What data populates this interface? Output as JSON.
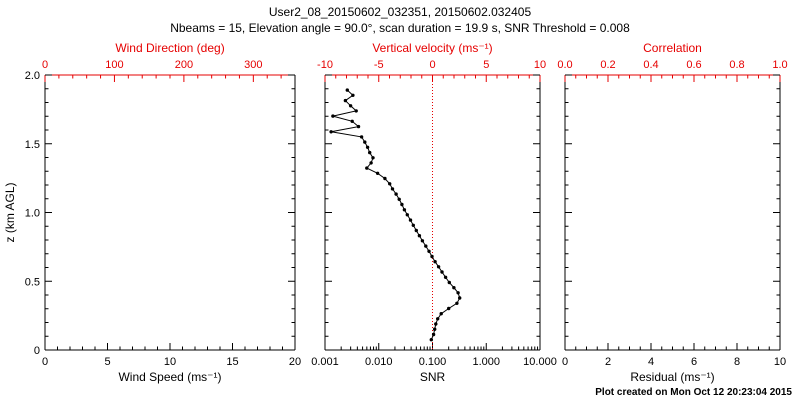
{
  "header": {
    "title": "User2_08_20150602_032351, 20150602.032405",
    "subtitle": "Nbeams = 15, Elevation angle = 90.0°, scan duration = 19.9 s, SNR Threshold = 0.008"
  },
  "footer": {
    "created": "Plot created on Mon Oct 12 20:23:04 2015"
  },
  "colors": {
    "background": "#ffffff",
    "axis": "#000000",
    "secondary_axis": "#e60000",
    "series": "#000000",
    "zero_line": "#e60000"
  },
  "chart_data": [
    {
      "type": "line",
      "panel": "wind-speed",
      "xlabel": "Wind Speed (ms⁻¹)",
      "x2label": "Wind Direction (deg)",
      "ylabel": "z (km AGL)",
      "xlim": [
        0,
        20
      ],
      "x2lim": [
        0,
        360
      ],
      "ylim": [
        0,
        2
      ],
      "xticks": [
        0,
        5,
        10,
        15,
        20
      ],
      "xtick_labels": [
        "0",
        "5",
        "10",
        "15",
        "20"
      ],
      "xminor_step": 1,
      "x2ticks": [
        0,
        100,
        200,
        300
      ],
      "x2tick_labels": [
        "0",
        "100",
        "200",
        "300"
      ],
      "x2minor_step": 20,
      "yticks": [
        0,
        0.5,
        1,
        1.5,
        2
      ],
      "ytick_labels": [
        "0",
        "0.5",
        "1.0",
        "1.5",
        "2.0"
      ],
      "yminor_step": 0.1,
      "show_ytick_labels": true,
      "grid": false,
      "series": []
    },
    {
      "type": "line",
      "panel": "snr",
      "xlabel": "SNR",
      "x2label": "Vertical velocity (ms⁻¹)",
      "xscale": "log",
      "xlim": [
        0.001,
        10
      ],
      "x2lim": [
        -10,
        10
      ],
      "ylim": [
        0,
        2
      ],
      "xticks": [
        0.001,
        0.01,
        0.1,
        1,
        10
      ],
      "xtick_labels": [
        "0.001",
        "0.010",
        "0.100",
        "1.000",
        "10.000"
      ],
      "x2ticks": [
        -10,
        -5,
        0,
        5,
        10
      ],
      "x2tick_labels": [
        "-10",
        "-5",
        "0",
        "5",
        "10"
      ],
      "x2minor_step": 1,
      "yticks": [
        0,
        0.5,
        1,
        1.5,
        2
      ],
      "ytick_labels": [
        "0",
        "0.5",
        "1.0",
        "1.5",
        "2.0"
      ],
      "yminor_step": 0.1,
      "show_ytick_labels": false,
      "zero_line_x2": 0,
      "grid": false,
      "series": [
        {
          "name": "SNR profile",
          "marker": "filled-circle",
          "z_values": [
            0.075,
            0.113,
            0.151,
            0.189,
            0.227,
            0.264,
            0.302,
            0.34,
            0.378,
            0.416,
            0.453,
            0.491,
            0.529,
            0.567,
            0.605,
            0.642,
            0.68,
            0.718,
            0.756,
            0.794,
            0.831,
            0.869,
            0.907,
            0.945,
            0.983,
            1.02,
            1.058,
            1.096,
            1.134,
            1.172,
            1.209,
            1.247,
            1.285,
            1.323,
            1.361,
            1.398,
            1.436,
            1.474,
            1.512,
            1.55,
            1.587,
            1.625,
            1.663,
            1.701,
            1.739,
            1.776,
            1.814,
            1.852,
            1.89
          ],
          "x_values": [
            0.095,
            0.105,
            0.11,
            0.115,
            0.125,
            0.145,
            0.2,
            0.285,
            0.32,
            0.3,
            0.25,
            0.205,
            0.175,
            0.15,
            0.13,
            0.112,
            0.098,
            0.086,
            0.075,
            0.065,
            0.057,
            0.05,
            0.044,
            0.039,
            0.034,
            0.03,
            0.027,
            0.024,
            0.021,
            0.018,
            0.016,
            0.013,
            0.0095,
            0.006,
            0.0072,
            0.0078,
            0.0068,
            0.0062,
            0.0055,
            0.0048,
            0.0013,
            0.0042,
            0.0032,
            0.0014,
            0.0038,
            0.003,
            0.0024,
            0.0033,
            0.0026
          ]
        }
      ]
    },
    {
      "type": "line",
      "panel": "residual",
      "xlabel": "Residual (ms⁻¹)",
      "x2label": "Correlation",
      "xlim": [
        0,
        10
      ],
      "x2lim": [
        0,
        1
      ],
      "ylim": [
        0,
        2
      ],
      "xticks": [
        0,
        2,
        4,
        6,
        8,
        10
      ],
      "xtick_labels": [
        "0",
        "2",
        "4",
        "6",
        "8",
        "10"
      ],
      "xminor_step": 0.5,
      "x2ticks": [
        0,
        0.2,
        0.4,
        0.6,
        0.8,
        1.0
      ],
      "x2tick_labels": [
        "0.0",
        "0.2",
        "0.4",
        "0.6",
        "0.8",
        "1.0"
      ],
      "x2minor_step": 0.05,
      "yticks": [
        0,
        0.5,
        1,
        1.5,
        2
      ],
      "ytick_labels": [
        "0",
        "0.5",
        "1.0",
        "1.5",
        "2.0"
      ],
      "yminor_step": 0.1,
      "show_ytick_labels": false,
      "grid": false,
      "series": []
    }
  ]
}
